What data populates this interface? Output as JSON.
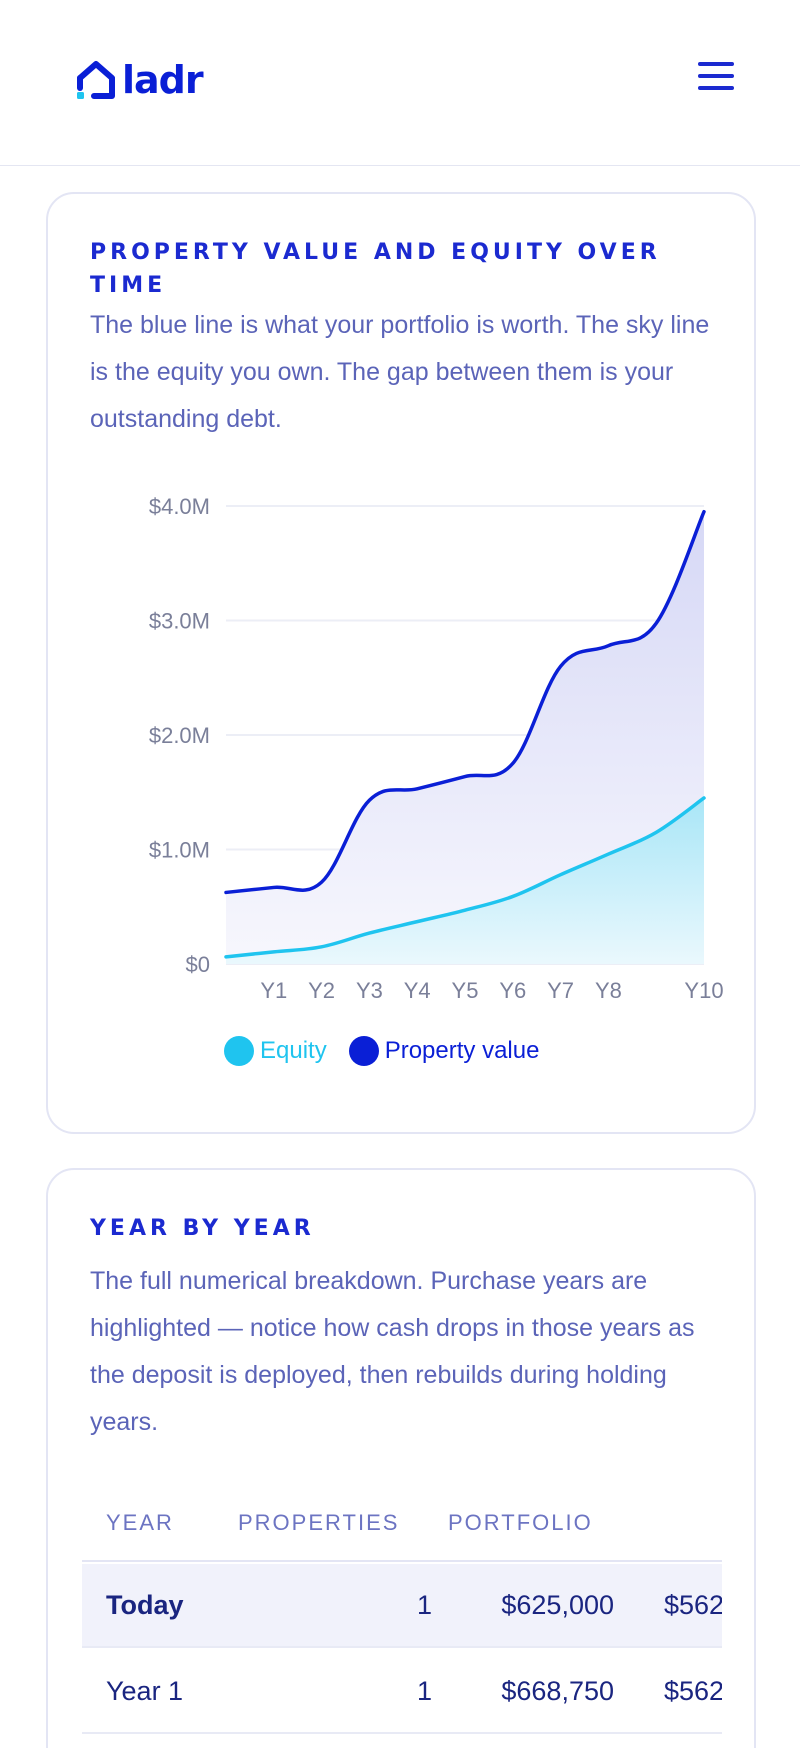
{
  "header": {
    "logo_text": "ladr",
    "logo_icon": "house-icon",
    "menu_icon": "hamburger-menu-icon"
  },
  "colors": {
    "brand": "#0a1fd6",
    "property_value": "#0a1fd6",
    "equity": "#1fc4ef",
    "card_border": "#e3e5f4"
  },
  "chart_card": {
    "title": "PROPERTY VALUE AND EQUITY OVER TIME",
    "description": "The blue line is what your portfolio is worth. The sky line is the equity you own. The gap between them is your outstanding debt.",
    "legend": [
      {
        "label": "Equity",
        "color": "#1fc4ef"
      },
      {
        "label": "Property value",
        "color": "#0a1fd6"
      }
    ]
  },
  "chart_data": {
    "type": "area",
    "y_tick_labels": [
      "$0",
      "$1.0M",
      "$2.0M",
      "$3.0M",
      "$4.0M"
    ],
    "y_ticks": [
      0,
      1000000,
      2000000,
      3000000,
      4000000
    ],
    "ylim": [
      0,
      4000000
    ],
    "x_tick_labels": [
      "Y1",
      "Y2",
      "Y3",
      "Y4",
      "Y5",
      "Y6",
      "Y7",
      "Y8",
      "Y10"
    ],
    "x_tick_positions": [
      1,
      2,
      3,
      4,
      5,
      6,
      7,
      8,
      10
    ],
    "xlim": [
      0,
      10
    ],
    "grid": true,
    "legend_position": "bottom-center",
    "series": [
      {
        "name": "Property value",
        "color": "#0a1fd6",
        "x": [
          0,
          1,
          2,
          3,
          4,
          5,
          6,
          7,
          8,
          9,
          10
        ],
        "values": [
          625000,
          668750,
          715000,
          1430000,
          1530000,
          1637000,
          1752000,
          2600000,
          2780000,
          2976000,
          3950000
        ]
      },
      {
        "name": "Equity",
        "color": "#1fc4ef",
        "x": [
          0,
          1,
          2,
          3,
          4,
          5,
          6,
          7,
          8,
          9,
          10
        ],
        "values": [
          62500,
          106250,
          150000,
          270000,
          370000,
          470000,
          590000,
          780000,
          960000,
          1150000,
          1450000
        ]
      }
    ]
  },
  "table_card": {
    "title": "YEAR BY YEAR",
    "description": "The full numerical breakdown. Purchase years are highlighted — notice how cash drops in those years as the deposit is deployed, then rebuilds during holding years.",
    "columns": [
      "YEAR",
      "PROPERTIES",
      "PORTFOLIO"
    ],
    "rows": [
      {
        "year": "Today",
        "properties": "1",
        "portfolio": "$625,000",
        "extra": "$562",
        "highlight": true
      },
      {
        "year": "Year 1",
        "properties": "1",
        "portfolio": "$668,750",
        "extra": "$562",
        "highlight": false
      }
    ]
  }
}
